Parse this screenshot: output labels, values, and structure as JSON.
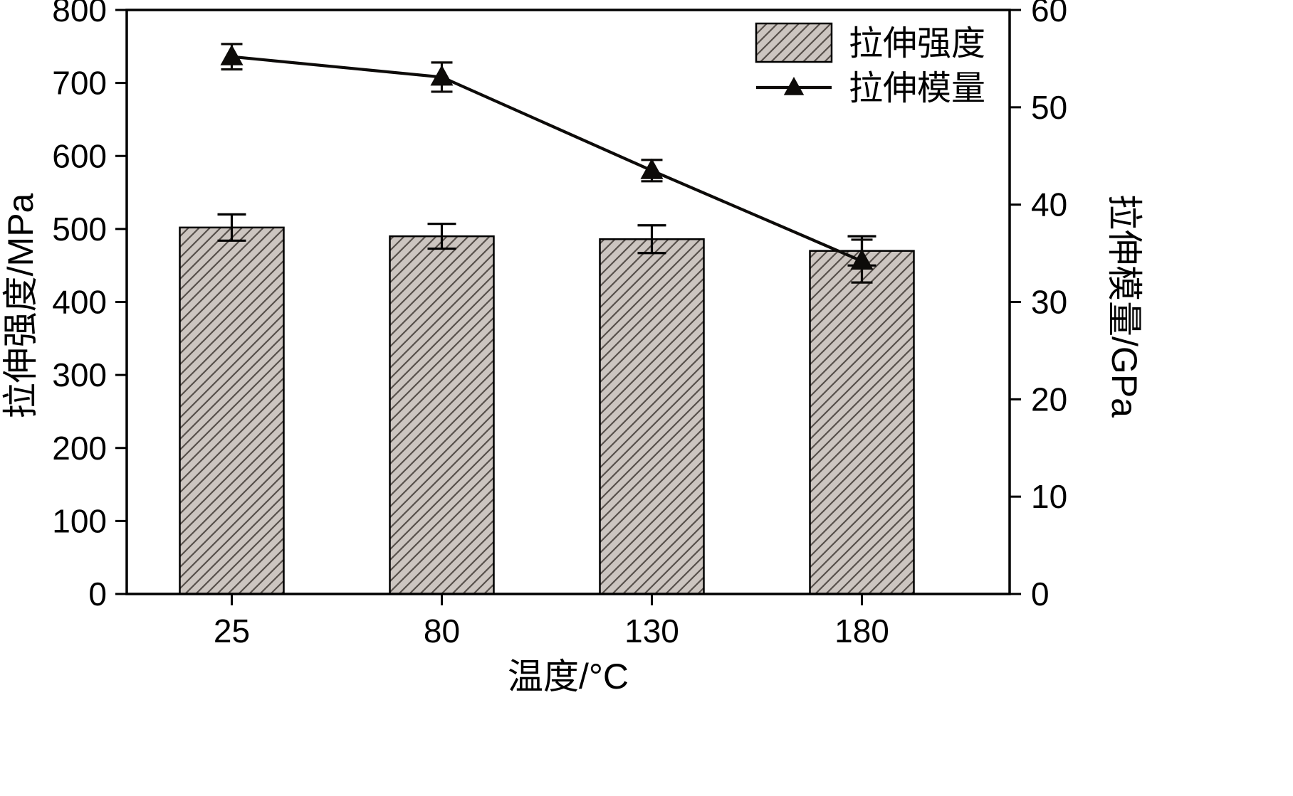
{
  "colors": {
    "bar_fill": "#ccc5c0",
    "hatch_line": "#57504b",
    "line_color": "#0d0b09",
    "axis_color": "#000000",
    "background": "#ffffff"
  },
  "chart_data": {
    "type": "bar",
    "title": "",
    "xlabel": "温度/°C",
    "ylabel_left": "拉伸强度/MPa",
    "ylabel_right": "拉伸模量/GPa",
    "categories": [
      "25",
      "80",
      "130",
      "180"
    ],
    "ylim_left": [
      0,
      800
    ],
    "yticks_left": [
      0,
      100,
      200,
      300,
      400,
      500,
      600,
      700,
      800
    ],
    "ylim_right": [
      0,
      60
    ],
    "yticks_right": [
      0,
      10,
      20,
      30,
      40,
      50,
      60
    ],
    "grid": false,
    "legend_position": "top-right-inside",
    "series": [
      {
        "name": "拉伸强度",
        "type": "bar",
        "axis": "left",
        "unit": "MPa",
        "values": [
          502,
          490,
          486,
          470
        ],
        "errors": [
          18,
          17,
          19,
          20
        ]
      },
      {
        "name": "拉伸模量",
        "type": "line",
        "axis": "right",
        "unit": "GPa",
        "marker": "triangle-up",
        "values": [
          55.2,
          53.1,
          43.5,
          34.2
        ],
        "errors": [
          1.3,
          1.5,
          1.1,
          2.2
        ]
      }
    ]
  }
}
